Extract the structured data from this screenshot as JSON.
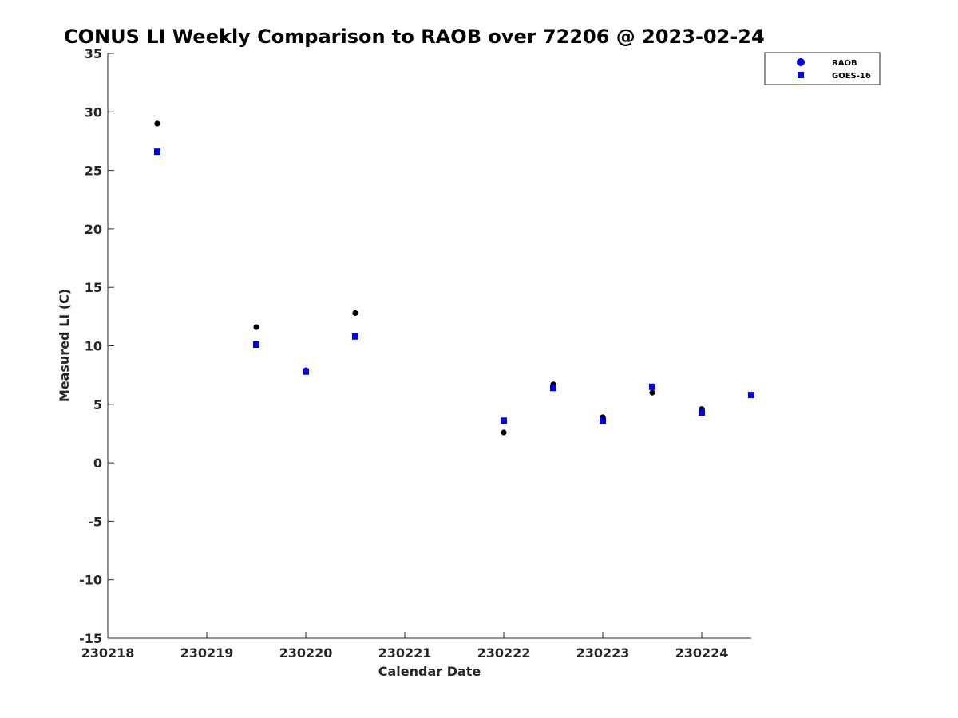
{
  "chart_data": {
    "type": "scatter",
    "title": "CONUS LI Weekly Comparison to RAOB over 72206 @ 2023-02-24",
    "xlabel": "Calendar Date",
    "ylabel": "Measured LI (C)",
    "xlim": [
      "2023-02-18",
      "2023-02-24 12:00"
    ],
    "ylim": [
      -15,
      35
    ],
    "x_ticks": [
      "230218",
      "230219",
      "230220",
      "230221",
      "230222",
      "230223",
      "230224"
    ],
    "y_ticks": [
      "35",
      "30",
      "25",
      "20",
      "15",
      "10",
      "5",
      "0",
      "-5",
      "-10",
      "-15"
    ],
    "grid": false,
    "legend_position": "top-right",
    "series": [
      {
        "name": "RAOB",
        "marker": "circle",
        "color": "#000000",
        "legend_color": "#0000ee",
        "points": [
          {
            "x": "2023-02-18 12:00",
            "y": 29.0
          },
          {
            "x": "2023-02-19 12:00",
            "y": 11.6
          },
          {
            "x": "2023-02-20 00:00",
            "y": 7.9
          },
          {
            "x": "2023-02-20 12:00",
            "y": 12.8
          },
          {
            "x": "2023-02-22 00:00",
            "y": 2.6
          },
          {
            "x": "2023-02-22 12:00",
            "y": 6.7
          },
          {
            "x": "2023-02-23 00:00",
            "y": 3.9
          },
          {
            "x": "2023-02-23 12:00",
            "y": 6.0
          },
          {
            "x": "2023-02-24 00:00",
            "y": 4.6
          },
          {
            "x": "2023-02-24 12:00",
            "y": 5.8
          }
        ]
      },
      {
        "name": "GOES-16",
        "marker": "square",
        "color": "#0000ee",
        "legend_color": "#0000ee",
        "points": [
          {
            "x": "2023-02-18 12:00",
            "y": 26.6
          },
          {
            "x": "2023-02-19 12:00",
            "y": 10.1
          },
          {
            "x": "2023-02-20 00:00",
            "y": 7.8
          },
          {
            "x": "2023-02-20 12:00",
            "y": 10.8
          },
          {
            "x": "2023-02-22 00:00",
            "y": 3.6
          },
          {
            "x": "2023-02-22 12:00",
            "y": 6.4
          },
          {
            "x": "2023-02-23 00:00",
            "y": 3.6
          },
          {
            "x": "2023-02-23 12:00",
            "y": 6.5
          },
          {
            "x": "2023-02-24 00:00",
            "y": 4.3
          },
          {
            "x": "2023-02-24 12:00",
            "y": 5.8
          }
        ]
      }
    ]
  }
}
